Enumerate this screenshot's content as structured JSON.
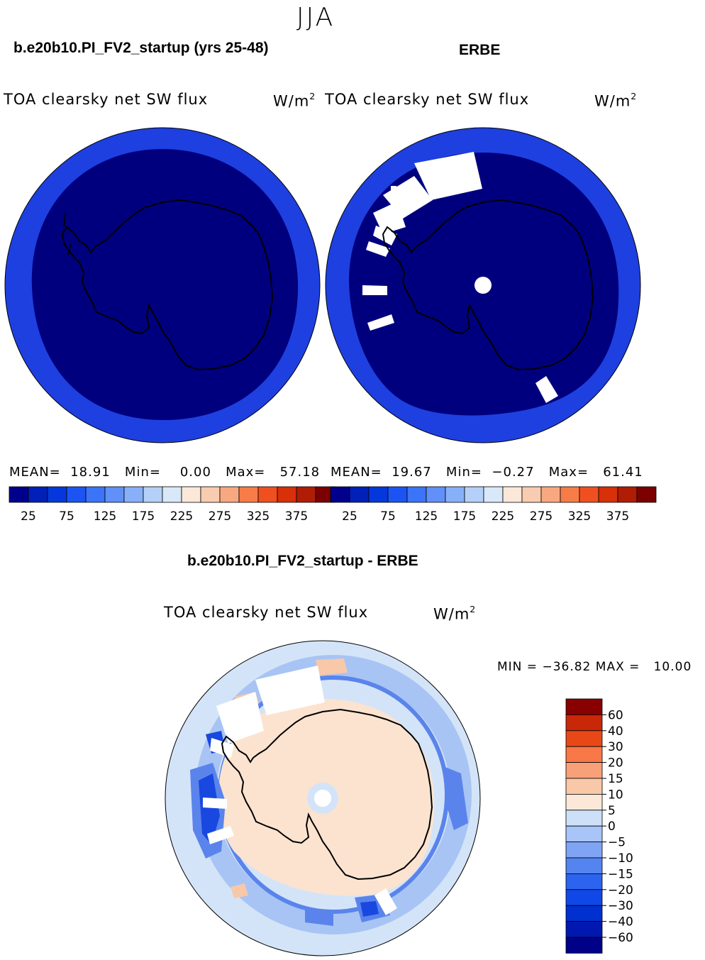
{
  "season": "JJA",
  "panels": [
    {
      "case_title": "b.e20b10.PI_FV2_startup (yrs 25-48)",
      "variable": "TOA clearsky net SW flux",
      "units_base": "W/m",
      "units_exp": "2",
      "stats": {
        "mean_label": "MEAN=",
        "mean": "18.91",
        "min_label": "Min=",
        "min": "0.00",
        "max_label": "Max=",
        "max": "57.18"
      }
    },
    {
      "case_title": "ERBE",
      "variable": "TOA clearsky net SW flux",
      "units_base": "W/m",
      "units_exp": "2",
      "stats": {
        "mean_label": "MEAN=",
        "mean": "19.67",
        "min_label": "Min=",
        "min": "−0.27",
        "max_label": "Max=",
        "max": "61.41"
      }
    }
  ],
  "abs_colorbar": {
    "colors": [
      "#00008c",
      "#0020b8",
      "#0438dc",
      "#1c54f4",
      "#3c74f8",
      "#6090f8",
      "#88b0f8",
      "#b4d0f8",
      "#d8e8f8",
      "#fce8d8",
      "#f8ccb0",
      "#f8a880",
      "#f87c48",
      "#f05020",
      "#d83008",
      "#b01c04",
      "#7c0000"
    ],
    "labels": [
      "25",
      "75",
      "125",
      "175",
      "225",
      "275",
      "325",
      "375"
    ]
  },
  "diff": {
    "title": "b.e20b10.PI_FV2_startup - ERBE",
    "variable": "TOA clearsky net SW flux",
    "units_base": "W/m",
    "units_exp": "2",
    "min_label": "MIN =",
    "min": "−36.82",
    "max_label": "MAX =",
    "max": "10.00"
  },
  "diff_colorbar": {
    "colors": [
      "#000088",
      "#0018b0",
      "#0030d0",
      "#1048e8",
      "#2c64f0",
      "#5484f0",
      "#80a4f4",
      "#a8c4f8",
      "#cce0f8",
      "#fce8d8",
      "#f8c8a8",
      "#f8a078",
      "#f87848",
      "#e84818",
      "#c82808",
      "#880000"
    ],
    "labels": [
      "60",
      "40",
      "30",
      "20",
      "15",
      "10",
      "5",
      "0",
      "−5",
      "−10",
      "−15",
      "−20",
      "−30",
      "−40",
      "−60"
    ]
  },
  "map_colors": {
    "model_outer": "#1e40e0",
    "model_inner": "#00007e",
    "obs_outer": "#1e40e0",
    "obs_inner": "#00007e",
    "diff_base": "#d4e4f8",
    "diff_land": "#fbe3d0",
    "diff_light_blue": "#a8c4f4",
    "diff_mid_blue": "#5a84ec",
    "diff_dark_blue": "#1848e0",
    "diff_peach": "#f8c8a8",
    "missing": "#ffffff"
  }
}
